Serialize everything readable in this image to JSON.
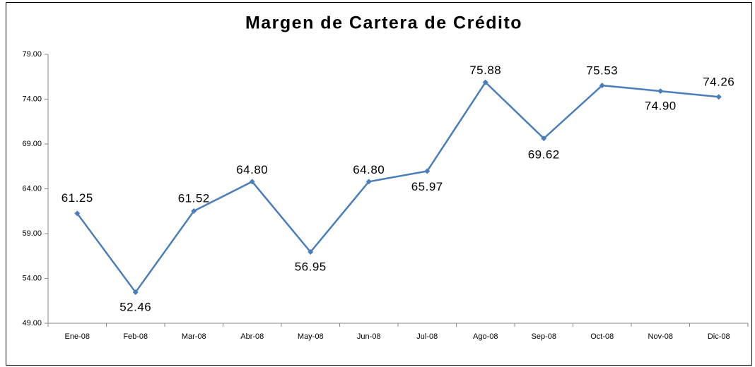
{
  "chart_data": {
    "type": "line",
    "title": "Margen de Cartera de Crédito",
    "categories": [
      "Ene-08",
      "Feb-08",
      "Mar-08",
      "Abr-08",
      "May-08",
      "Jun-08",
      "Jul-08",
      "Ago-08",
      "Sep-08",
      "Oct-08",
      "Nov-08",
      "Dic-08"
    ],
    "series": [
      {
        "name": "Margen de Cartera de Crédito",
        "color": "#4a7ebb",
        "values": [
          61.25,
          52.46,
          61.52,
          64.8,
          56.95,
          64.8,
          65.97,
          75.88,
          69.62,
          75.53,
          74.9,
          74.26
        ],
        "value_labels": [
          "61.25",
          "52.46",
          "61.52",
          "64.80",
          "56.95",
          "64.80",
          "65.97",
          "75.88",
          "69.62",
          "75.53",
          "74.90",
          "74.26"
        ]
      }
    ],
    "ylim": [
      49,
      79
    ],
    "yticks": [
      {
        "value": 49,
        "label": "49.00"
      },
      {
        "value": 54,
        "label": "54.00"
      },
      {
        "value": 59,
        "label": "59.00"
      },
      {
        "value": 64,
        "label": "64.00"
      },
      {
        "value": 69,
        "label": "69.00"
      },
      {
        "value": 74,
        "label": "74.00"
      },
      {
        "value": 79,
        "label": "79.00"
      }
    ],
    "grid": false
  }
}
